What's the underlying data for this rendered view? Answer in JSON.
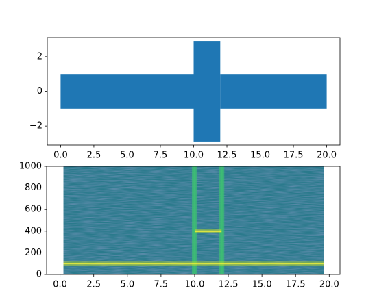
{
  "chart_data": [
    {
      "type": "band",
      "bins": [
        0,
        10,
        12,
        20
      ],
      "upper": [
        1,
        2.9,
        1
      ],
      "lower": [
        -1,
        -2.9,
        -1
      ],
      "color": "#1f77b4",
      "xlim": [
        -1,
        21
      ],
      "ylim": [
        -3.1,
        3.1
      ],
      "xticks": [
        {
          "value": 0,
          "label": "0.0"
        },
        {
          "value": 2.5,
          "label": "2.5"
        },
        {
          "value": 5,
          "label": "5.0"
        },
        {
          "value": 7.5,
          "label": "7.5"
        },
        {
          "value": 10,
          "label": "10.0"
        },
        {
          "value": 12.5,
          "label": "12.5"
        },
        {
          "value": 15,
          "label": "15.0"
        },
        {
          "value": 17.5,
          "label": "17.5"
        },
        {
          "value": 20,
          "label": "20.0"
        }
      ],
      "yticks": [
        {
          "value": -2,
          "label": "−2"
        },
        0,
        2
      ]
    },
    {
      "type": "specgram",
      "extent": [
        0.25,
        19.6
      ],
      "tones": [
        {
          "freq": 100,
          "start": 0.25,
          "end": 19.6
        },
        {
          "freq": 400,
          "start": 10,
          "end": 12
        }
      ],
      "transients": [
        10,
        12
      ],
      "background_color": "#2a7a8c",
      "tone_color": "#c6e021",
      "transient_color": "#3dbc74",
      "xlim": [
        -1,
        20.8
      ],
      "ylim": [
        0,
        1000
      ],
      "xticks": [
        {
          "value": 0,
          "label": "0.0"
        },
        {
          "value": 2.5,
          "label": "2.5"
        },
        {
          "value": 5,
          "label": "5.0"
        },
        {
          "value": 7.5,
          "label": "7.5"
        },
        {
          "value": 10,
          "label": "10.0"
        },
        {
          "value": 12.5,
          "label": "12.5"
        },
        {
          "value": 15,
          "label": "15.0"
        },
        {
          "value": 17.5,
          "label": "17.5"
        },
        {
          "value": 20,
          "label": "20.0"
        }
      ],
      "yticks": [
        0,
        200,
        400,
        600,
        800,
        1000
      ]
    }
  ]
}
